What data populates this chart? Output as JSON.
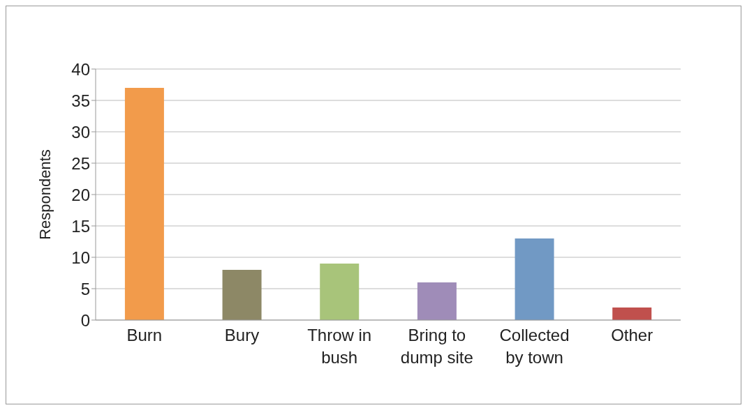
{
  "chart_data": {
    "type": "bar",
    "ylabel": "Respondents",
    "categories": [
      "Burn",
      "Bury",
      "Throw in bush",
      "Bring to dump site",
      "Collected by town",
      "Other"
    ],
    "values": [
      37,
      8,
      9,
      6,
      13,
      2
    ],
    "colors": [
      "#f29b4b",
      "#8d8866",
      "#a8c47a",
      "#9f8cb8",
      "#7199c4",
      "#c0504d"
    ],
    "ylim": [
      0,
      40
    ],
    "yticks": [
      0,
      5,
      10,
      15,
      20,
      25,
      30,
      35,
      40
    ],
    "grid": "y",
    "legend": false
  }
}
